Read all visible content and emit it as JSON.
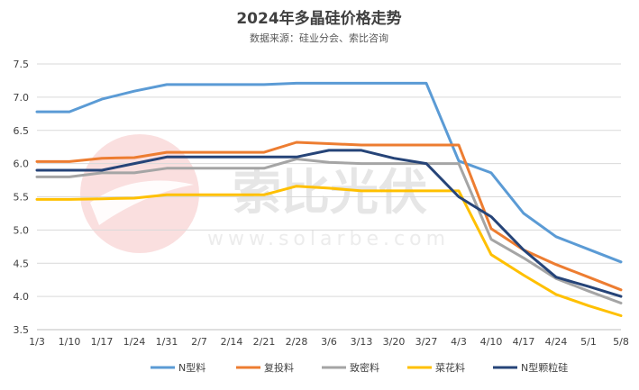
{
  "chart_data": {
    "type": "line",
    "title": "2024年多晶硅价格走势",
    "subtitle": "数据来源：硅业分会、索比咨询",
    "categories": [
      "1/3",
      "1/10",
      "1/17",
      "1/24",
      "1/31",
      "2/7",
      "2/14",
      "2/21",
      "2/28",
      "3/6",
      "3/13",
      "3/20",
      "3/27",
      "4/3",
      "4/10",
      "4/17",
      "4/24",
      "5/1",
      "5/8"
    ],
    "ylim": [
      3.5,
      7.5
    ],
    "yticks": [
      "3.5",
      "4.0",
      "4.5",
      "5.0",
      "5.5",
      "6.0",
      "6.5",
      "7.0",
      "7.5"
    ],
    "grid": true,
    "legend_position": "bottom",
    "series": [
      {
        "name": "N型料",
        "color": "#5b9bd5",
        "values": [
          6.78,
          6.78,
          6.97,
          7.09,
          7.19,
          7.19,
          7.19,
          7.19,
          7.21,
          7.21,
          7.21,
          7.21,
          7.21,
          6.04,
          5.86,
          5.25,
          4.9,
          4.71,
          4.52
        ]
      },
      {
        "name": "复投料",
        "color": "#ed7d31",
        "values": [
          6.03,
          6.03,
          6.08,
          6.09,
          6.17,
          6.17,
          6.17,
          6.17,
          6.32,
          6.3,
          6.28,
          6.28,
          6.28,
          6.28,
          5.02,
          4.7,
          4.48,
          4.29,
          4.1
        ]
      },
      {
        "name": "致密料",
        "color": "#a5a5a5",
        "values": [
          5.8,
          5.8,
          5.86,
          5.86,
          5.93,
          5.93,
          5.93,
          5.93,
          6.07,
          6.02,
          6.0,
          6.0,
          6.0,
          6.0,
          4.86,
          4.58,
          4.27,
          4.08,
          3.9
        ]
      },
      {
        "name": "菜花料",
        "color": "#ffc000",
        "values": [
          5.46,
          5.46,
          5.47,
          5.48,
          5.53,
          5.53,
          5.53,
          5.53,
          5.66,
          5.63,
          5.59,
          5.59,
          5.59,
          5.59,
          4.63,
          4.32,
          4.03,
          3.86,
          3.71
        ]
      },
      {
        "name": "N型颗粒硅",
        "color": "#264478",
        "values": [
          5.9,
          5.9,
          5.9,
          6.0,
          6.1,
          6.1,
          6.1,
          6.1,
          6.1,
          6.2,
          6.2,
          6.08,
          6.0,
          5.5,
          5.2,
          4.7,
          4.29,
          4.15,
          4.0
        ]
      }
    ]
  },
  "watermark": {
    "brand": "索比光伏",
    "url": "www.solarbe.com"
  }
}
